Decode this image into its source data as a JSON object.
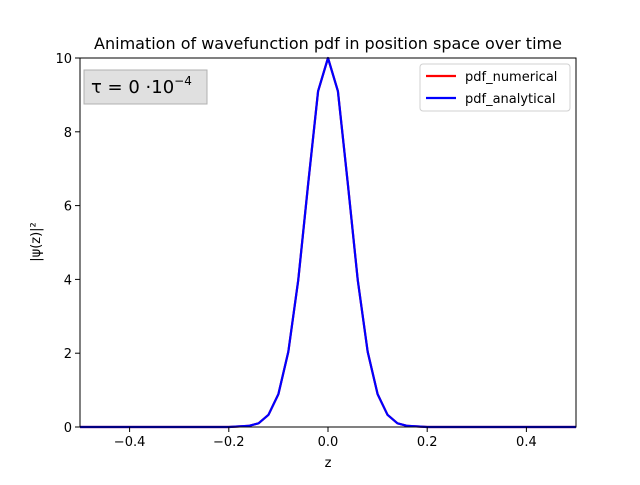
{
  "chart_data": {
    "type": "line",
    "title": "Animation of wavefunction pdf in position space over time",
    "xlabel": "z",
    "ylabel": "|ψ(z)|²",
    "xlim": [
      -0.5,
      0.5
    ],
    "ylim": [
      0,
      10
    ],
    "xticks": [
      -0.4,
      -0.2,
      0.0,
      0.2,
      0.4
    ],
    "xtick_labels": [
      "−0.4",
      "−0.2",
      "0.0",
      "0.2",
      "0.4"
    ],
    "yticks": [
      0,
      2,
      4,
      6,
      8,
      10
    ],
    "ytick_labels": [
      "0",
      "2",
      "4",
      "6",
      "8",
      "10"
    ],
    "grid": false,
    "legend_position": "top-right",
    "annotation": {
      "prefix": "τ = 0 ·10",
      "exponent": "−4"
    },
    "series": [
      {
        "name": "pdf_numerical",
        "color": "#ff0000",
        "x": [
          -0.5,
          -0.25,
          -0.2,
          -0.16,
          -0.14,
          -0.12,
          -0.1,
          -0.08,
          -0.06,
          -0.04,
          -0.02,
          0.0,
          0.02,
          0.04,
          0.06,
          0.08,
          0.1,
          0.12,
          0.14,
          0.16,
          0.2,
          0.25,
          0.5
        ],
        "y": [
          0.0,
          0.0,
          0.0,
          0.03,
          0.1,
          0.33,
          0.89,
          2.04,
          3.98,
          6.59,
          9.1,
          10.0,
          9.1,
          6.59,
          3.98,
          2.04,
          0.89,
          0.33,
          0.1,
          0.03,
          0.0,
          0.0,
          0.0
        ]
      },
      {
        "name": "pdf_analytical",
        "color": "#0000ff",
        "x": [
          -0.5,
          -0.25,
          -0.2,
          -0.16,
          -0.14,
          -0.12,
          -0.1,
          -0.08,
          -0.06,
          -0.04,
          -0.02,
          0.0,
          0.02,
          0.04,
          0.06,
          0.08,
          0.1,
          0.12,
          0.14,
          0.16,
          0.2,
          0.25,
          0.5
        ],
        "y": [
          0.0,
          0.0,
          0.0,
          0.03,
          0.1,
          0.33,
          0.89,
          2.04,
          3.98,
          6.59,
          9.1,
          10.0,
          9.1,
          6.59,
          3.98,
          2.04,
          0.89,
          0.33,
          0.1,
          0.03,
          0.0,
          0.0,
          0.0
        ]
      }
    ]
  }
}
